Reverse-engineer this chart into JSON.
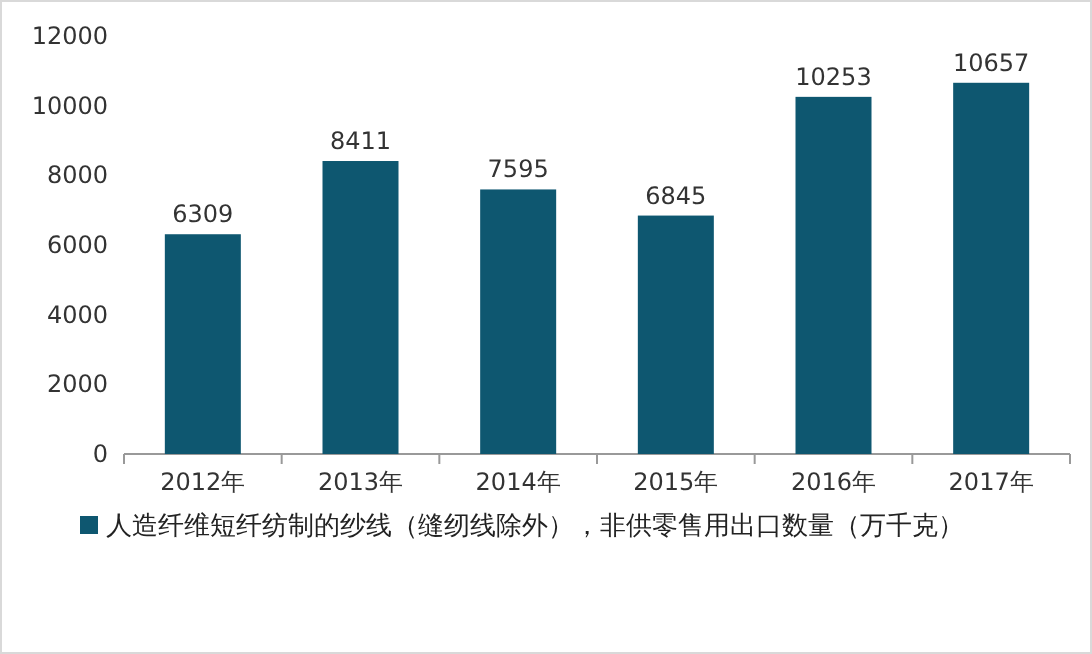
{
  "chart_data": {
    "type": "bar",
    "categories": [
      "2012年",
      "2013年",
      "2014年",
      "2015年",
      "2016年",
      "2017年"
    ],
    "series": [
      {
        "name": "人造纤维短纤纺制的纱线（缝纫线除外），非供零售用出口数量（万千克）",
        "color": "#0e5770",
        "values": [
          6309,
          8411,
          7595,
          6845,
          10253,
          10657
        ]
      }
    ],
    "ylim": [
      0,
      12000
    ],
    "yticks": [
      0,
      2000,
      4000,
      6000,
      8000,
      10000,
      12000
    ],
    "data_labels": true,
    "grid": false,
    "legend": "bottom"
  }
}
